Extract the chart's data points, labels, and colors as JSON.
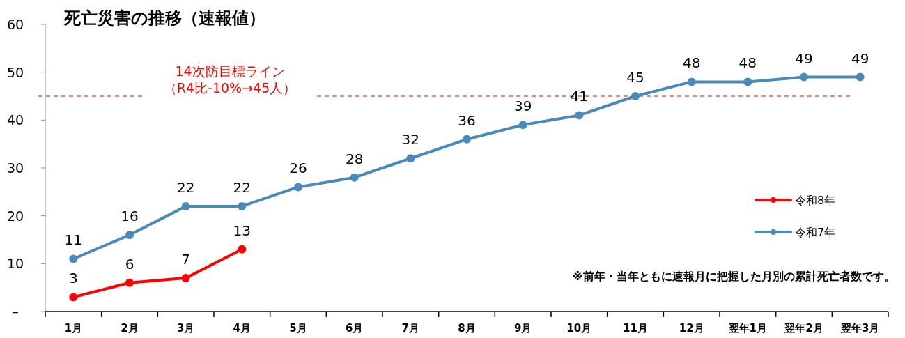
{
  "chart_data": {
    "type": "line",
    "title": "死亡災害の推移（速報値）",
    "categories": [
      "1月",
      "2月",
      "3月",
      "4月",
      "5月",
      "6月",
      "7月",
      "8月",
      "9月",
      "10月",
      "11月",
      "12月",
      "翌年1月",
      "翌年2月",
      "翌年3月"
    ],
    "series": [
      {
        "name": "令和8年",
        "color": "#ff0000",
        "values": [
          3,
          6,
          7,
          13,
          null,
          null,
          null,
          null,
          null,
          null,
          null,
          null,
          null,
          null,
          null
        ]
      },
      {
        "name": "令和7年",
        "color": "#4a8ab8",
        "values": [
          11,
          16,
          22,
          22,
          26,
          28,
          32,
          36,
          39,
          41,
          45,
          48,
          48,
          49,
          49
        ]
      }
    ],
    "ylim": [
      0,
      60
    ],
    "yticks": [
      {
        "value": 0,
        "label": "–"
      },
      10,
      20,
      30,
      40,
      50,
      60
    ],
    "data_labels": true,
    "marker": "circle",
    "line_style": "solid",
    "legend": "right",
    "ref_lines": [
      {
        "axis": "y",
        "value": 45,
        "label": "14次防目標ライン（R4比-10%→45人）",
        "color": "#ff0000",
        "line_style": "dashed"
      }
    ],
    "annotations": [
      "※前年・当年ともに速報月に把握した月別の累計死亡者数です。"
    ]
  }
}
